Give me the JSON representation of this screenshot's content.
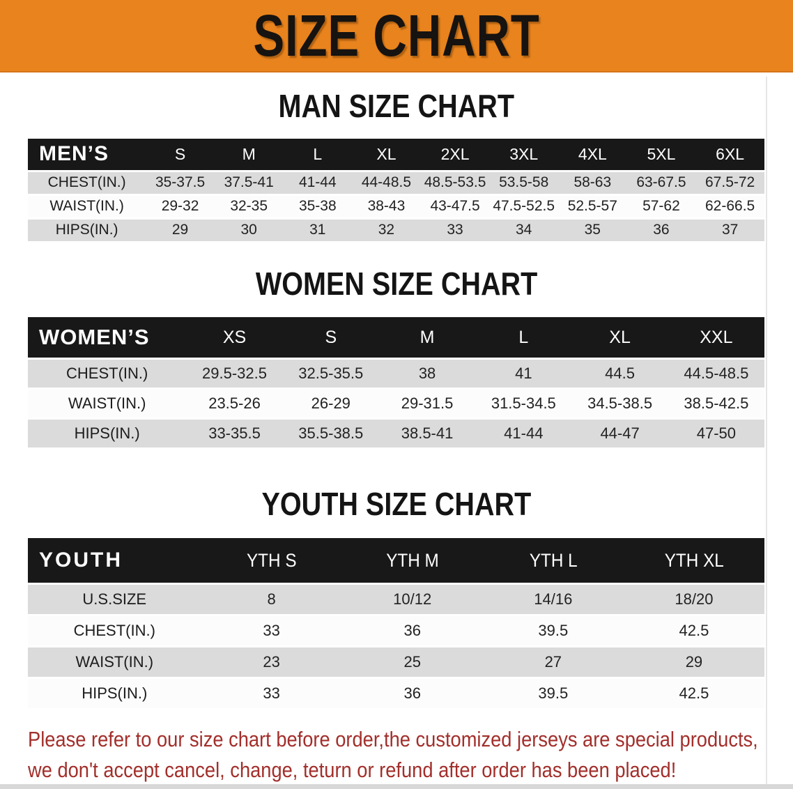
{
  "banner": {
    "title": "SIZE CHART"
  },
  "colors": {
    "banner_bg": "#E8831D",
    "table_header_bg": "#181818",
    "stripe_row_bg": "#DBDBDB",
    "plain_row_bg": "#FCFCFC",
    "disclaimer_text": "#A22F2B"
  },
  "sections": [
    {
      "id": "men",
      "heading": "MAN SIZE CHART",
      "table": {
        "corner": "MEN’S",
        "columns": [
          "S",
          "M",
          "L",
          "XL",
          "2XL",
          "3XL",
          "4XL",
          "5XL",
          "6XL"
        ],
        "rows": [
          {
            "label": "CHEST(IN.)",
            "values": [
              "35-37.5",
              "37.5-41",
              "41-44",
              "44-48.5",
              "48.5-53.5",
              "53.5-58",
              "58-63",
              "63-67.5",
              "67.5-72"
            ]
          },
          {
            "label": "WAIST(IN.)",
            "values": [
              "29-32",
              "32-35",
              "35-38",
              "38-43",
              "43-47.5",
              "47.5-52.5",
              "52.5-57",
              "57-62",
              "62-66.5"
            ]
          },
          {
            "label": "HIPS(IN.)",
            "values": [
              "29",
              "30",
              "31",
              "32",
              "33",
              "34",
              "35",
              "36",
              "37"
            ]
          }
        ]
      }
    },
    {
      "id": "women",
      "heading": "WOMEN SIZE CHART",
      "table": {
        "corner": "WOMEN’S",
        "columns": [
          "XS",
          "S",
          "M",
          "L",
          "XL",
          "XXL"
        ],
        "rows": [
          {
            "label": "CHEST(IN.)",
            "values": [
              "29.5-32.5",
              "32.5-35.5",
              "38",
              "41",
              "44.5",
              "44.5-48.5"
            ]
          },
          {
            "label": "WAIST(IN.)",
            "values": [
              "23.5-26",
              "26-29",
              "29-31.5",
              "31.5-34.5",
              "34.5-38.5",
              "38.5-42.5"
            ]
          },
          {
            "label": "HIPS(IN.)",
            "values": [
              "33-35.5",
              "35.5-38.5",
              "38.5-41",
              "41-44",
              "44-47",
              "47-50"
            ]
          }
        ]
      }
    },
    {
      "id": "youth",
      "heading": "YOUTH SIZE CHART",
      "table": {
        "corner": "YOUTH",
        "columns": [
          "YTH S",
          "YTH M",
          "YTH L",
          "YTH XL"
        ],
        "rows": [
          {
            "label": "U.S.SIZE",
            "values": [
              "8",
              "10/12",
              "14/16",
              "18/20"
            ]
          },
          {
            "label": "CHEST(IN.)",
            "values": [
              "33",
              "36",
              "39.5",
              "42.5"
            ]
          },
          {
            "label": "WAIST(IN.)",
            "values": [
              "23",
              "25",
              "27",
              "29"
            ]
          },
          {
            "label": "HIPS(IN.)",
            "values": [
              "33",
              "36",
              "39.5",
              "42.5"
            ]
          }
        ]
      }
    }
  ],
  "disclaimer": {
    "line1": "Please refer to our size chart before order,the customized jerseys are special products,",
    "line2": "we don't accept cancel, change, teturn or refund after order has been placed!"
  }
}
